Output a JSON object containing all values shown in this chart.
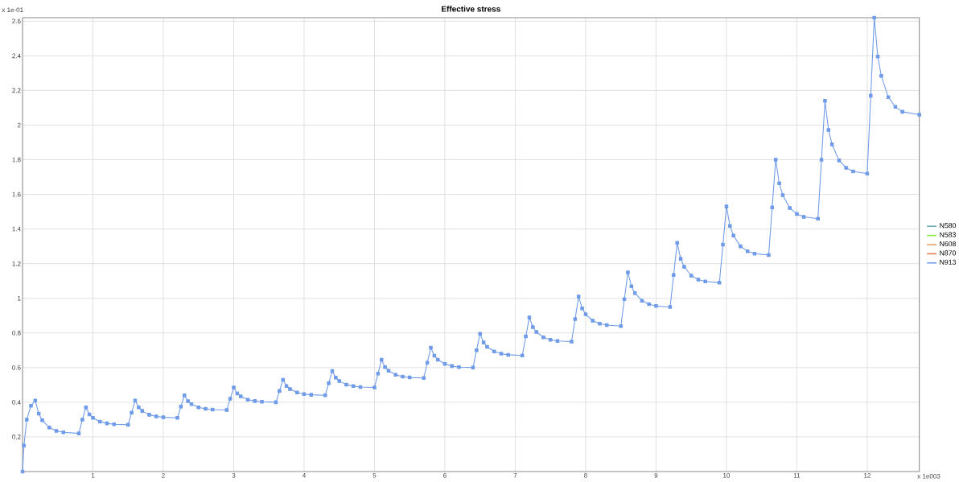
{
  "chart_data": {
    "type": "line",
    "title": "Effective stress",
    "x": [
      0,
      0.02,
      0.06,
      0.12,
      0.18,
      0.23,
      0.28,
      0.38,
      0.48,
      0.58,
      0.8,
      0.85,
      0.9,
      0.95,
      1.0,
      1.1,
      1.2,
      1.3,
      1.5,
      1.55,
      1.6,
      1.65,
      1.7,
      1.8,
      1.9,
      2.0,
      2.2,
      2.25,
      2.3,
      2.35,
      2.4,
      2.5,
      2.6,
      2.7,
      2.9,
      2.95,
      3.0,
      3.05,
      3.1,
      3.2,
      3.3,
      3.4,
      3.6,
      3.65,
      3.7,
      3.75,
      3.8,
      3.9,
      4.0,
      4.1,
      4.3,
      4.35,
      4.4,
      4.45,
      4.5,
      4.6,
      4.7,
      4.8,
      5.0,
      5.05,
      5.1,
      5.15,
      5.2,
      5.3,
      5.4,
      5.5,
      5.7,
      5.75,
      5.8,
      5.85,
      5.9,
      6.0,
      6.1,
      6.2,
      6.4,
      6.45,
      6.5,
      6.55,
      6.6,
      6.7,
      6.8,
      6.9,
      7.1,
      7.15,
      7.2,
      7.25,
      7.3,
      7.4,
      7.5,
      7.6,
      7.8,
      7.85,
      7.9,
      7.95,
      8.0,
      8.1,
      8.2,
      8.3,
      8.5,
      8.55,
      8.6,
      8.65,
      8.7,
      8.8,
      8.9,
      9.0,
      9.2,
      9.25,
      9.3,
      9.35,
      9.4,
      9.5,
      9.6,
      9.7,
      9.9,
      9.95,
      10.0,
      10.05,
      10.1,
      10.2,
      10.3,
      10.4,
      10.6,
      10.65,
      10.7,
      10.75,
      10.8,
      10.9,
      11.0,
      11.1,
      11.3,
      11.35,
      11.4,
      11.45,
      11.5,
      11.6,
      11.7,
      11.8,
      12.0,
      12.05,
      12.1,
      12.15,
      12.2,
      12.3,
      12.4,
      12.5,
      12.74
    ],
    "series": [
      {
        "name": "N580",
        "color": "#6fa8b8",
        "values": [
          null,
          null,
          null,
          null,
          null,
          null,
          null,
          null,
          null,
          null,
          null,
          null,
          null,
          null,
          null,
          null,
          null,
          null,
          null,
          null,
          null,
          null,
          null,
          null,
          null,
          null,
          null,
          null,
          null,
          null,
          null,
          null,
          null,
          null,
          null,
          null,
          null,
          null,
          null,
          null,
          null,
          null,
          null,
          null,
          null,
          null,
          null,
          null,
          null,
          null,
          null,
          null,
          null,
          null,
          null,
          null,
          null,
          null,
          null,
          null,
          null,
          null,
          null,
          null,
          null,
          null,
          null,
          null,
          null,
          null,
          null,
          null,
          null,
          null,
          null,
          null,
          null,
          null,
          null,
          null,
          null,
          null,
          null,
          null,
          null,
          null,
          null,
          null,
          null,
          null,
          null,
          null,
          null,
          null,
          null,
          null,
          null,
          null,
          null,
          null,
          null,
          null,
          null,
          null,
          null,
          null,
          null,
          null,
          null,
          null,
          null,
          null,
          null,
          null,
          null,
          null,
          null,
          null,
          null,
          null,
          null,
          null,
          null,
          null,
          null,
          null,
          null,
          null,
          null,
          null,
          null,
          null,
          null,
          null,
          null,
          null,
          null,
          null,
          null,
          null,
          null,
          null,
          null,
          null,
          null,
          null,
          null
        ]
      },
      {
        "name": "N583",
        "color": "#8ee83a",
        "values": [
          null,
          null,
          null,
          null,
          null,
          null,
          null,
          null,
          null,
          null,
          null,
          null,
          null,
          null,
          null,
          null,
          null,
          null,
          null,
          null,
          null,
          null,
          null,
          null,
          null,
          null,
          null,
          null,
          null,
          null,
          null,
          null,
          null,
          null,
          null,
          null,
          null,
          null,
          null,
          null,
          null,
          null,
          null,
          null,
          null,
          null,
          null,
          null,
          null,
          null,
          null,
          null,
          null,
          null,
          null,
          null,
          null,
          null,
          null,
          null,
          null,
          null,
          null,
          null,
          null,
          null,
          null,
          null,
          null,
          null,
          null,
          null,
          null,
          null,
          null,
          null,
          null,
          null,
          null,
          null,
          null,
          null,
          null,
          null,
          null,
          null,
          null,
          null,
          null,
          null,
          null,
          null,
          null,
          null,
          null,
          null,
          null,
          null,
          null,
          null,
          null,
          null,
          null,
          null,
          null,
          null,
          null,
          null,
          null,
          null,
          null,
          null,
          null,
          null,
          null,
          null,
          null,
          null,
          null,
          null,
          null,
          null,
          null,
          null,
          null,
          null,
          null,
          null,
          null,
          null,
          null,
          null,
          null,
          null,
          null,
          null,
          null,
          null,
          null,
          null,
          null,
          null,
          null,
          null,
          null,
          null,
          null
        ]
      },
      {
        "name": "N608",
        "color": "#e8a070",
        "values": [
          null,
          null,
          null,
          null,
          null,
          null,
          null,
          null,
          null,
          null,
          null,
          null,
          null,
          null,
          null,
          null,
          null,
          null,
          null,
          null,
          null,
          null,
          null,
          null,
          null,
          null,
          null,
          null,
          null,
          null,
          null,
          null,
          null,
          null,
          null,
          null,
          null,
          null,
          null,
          null,
          null,
          null,
          null,
          null,
          null,
          null,
          null,
          null,
          null,
          null,
          null,
          null,
          null,
          null,
          null,
          null,
          null,
          null,
          null,
          null,
          null,
          null,
          null,
          null,
          null,
          null,
          null,
          null,
          null,
          null,
          null,
          null,
          null,
          null,
          null,
          null,
          null,
          null,
          null,
          null,
          null,
          null,
          null,
          null,
          null,
          null,
          null,
          null,
          null,
          null,
          null,
          null,
          null,
          null,
          null,
          null,
          null,
          null,
          null,
          null,
          null,
          null,
          null,
          null,
          null,
          null,
          null,
          null,
          null,
          null,
          null,
          null,
          null,
          null,
          null,
          null,
          null,
          null,
          null,
          null,
          null,
          null,
          null,
          null,
          null,
          null,
          null,
          null,
          null,
          null,
          null,
          null,
          null,
          null,
          null,
          null,
          null,
          null,
          null,
          null,
          null,
          null,
          null,
          null,
          null,
          null,
          null
        ]
      },
      {
        "name": "N870",
        "color": "#f07848",
        "values": [
          null,
          null,
          null,
          null,
          null,
          null,
          null,
          null,
          null,
          null,
          null,
          null,
          null,
          null,
          null,
          null,
          null,
          null,
          null,
          null,
          null,
          null,
          null,
          null,
          null,
          null,
          null,
          null,
          null,
          null,
          null,
          null,
          null,
          null,
          null,
          null,
          null,
          null,
          null,
          null,
          null,
          null,
          null,
          null,
          null,
          null,
          null,
          null,
          null,
          null,
          null,
          null,
          null,
          null,
          null,
          null,
          null,
          null,
          null,
          null,
          null,
          null,
          null,
          null,
          null,
          null,
          null,
          null,
          null,
          null,
          null,
          null,
          null,
          null,
          null,
          null,
          null,
          null,
          null,
          null,
          null,
          null,
          null,
          null,
          null,
          null,
          null,
          null,
          null,
          null,
          null,
          null,
          null,
          null,
          null,
          null,
          null,
          null,
          null,
          null,
          null,
          null,
          null,
          null,
          null,
          null,
          null,
          null,
          null,
          null,
          null,
          null,
          null,
          null,
          null,
          null,
          null,
          null,
          null,
          null,
          null,
          null,
          null,
          null,
          null,
          null,
          null,
          null,
          null,
          null,
          null,
          null,
          null,
          null,
          null,
          null,
          null,
          null,
          null,
          null,
          null,
          null,
          null,
          null,
          null,
          null,
          null
        ]
      },
      {
        "name": "N913",
        "color": "#6f9be8",
        "marker": "square",
        "values": [
          0,
          0.15,
          0.3,
          0.38,
          0.41,
          0.334,
          0.296,
          0.254,
          0.235,
          0.226,
          0.22,
          0.3,
          0.37,
          0.33,
          0.31,
          0.288,
          0.278,
          0.273,
          0.27,
          0.34,
          0.41,
          0.37,
          0.35,
          0.328,
          0.318,
          0.313,
          0.31,
          0.375,
          0.44,
          0.406,
          0.389,
          0.37,
          0.362,
          0.358,
          0.355,
          0.42,
          0.485,
          0.451,
          0.434,
          0.415,
          0.407,
          0.403,
          0.4,
          0.465,
          0.53,
          0.494,
          0.476,
          0.456,
          0.447,
          0.443,
          0.44,
          0.51,
          0.58,
          0.542,
          0.523,
          0.502,
          0.493,
          0.488,
          0.485,
          0.565,
          0.645,
          0.603,
          0.582,
          0.559,
          0.548,
          0.543,
          0.54,
          0.628,
          0.715,
          0.669,
          0.646,
          0.621,
          0.609,
          0.603,
          0.6,
          0.7,
          0.795,
          0.745,
          0.72,
          0.693,
          0.68,
          0.674,
          0.67,
          0.78,
          0.89,
          0.834,
          0.806,
          0.775,
          0.761,
          0.754,
          0.75,
          0.88,
          1.01,
          0.942,
          0.908,
          0.871,
          0.854,
          0.845,
          0.84,
          0.995,
          1.15,
          1.07,
          1.03,
          0.986,
          0.966,
          0.956,
          0.95,
          1.135,
          1.32,
          1.228,
          1.182,
          1.131,
          1.108,
          1.097,
          1.09,
          1.31,
          1.53,
          1.418,
          1.362,
          1.3,
          1.272,
          1.258,
          1.25,
          1.525,
          1.8,
          1.664,
          1.596,
          1.521,
          1.487,
          1.47,
          1.46,
          1.8,
          2.14,
          1.972,
          1.888,
          1.796,
          1.754,
          1.733,
          1.72,
          2.17,
          2.62,
          2.396,
          2.284,
          2.161,
          2.105,
          2.077,
          2.06
        ]
      }
    ],
    "xlim": [
      0,
      12.74
    ],
    "xticks": [
      1,
      2,
      3,
      4,
      5,
      6,
      7,
      8,
      9,
      10,
      11,
      12
    ],
    "ylim": [
      0,
      2.62
    ],
    "yticks": [
      0.2,
      0.4,
      0.6,
      0.8,
      1,
      1.2,
      1.4,
      1.6,
      1.8,
      2,
      2.2,
      2.4,
      2.6
    ],
    "grid": true,
    "legend": "right",
    "line_style": "solid",
    "annotations": [
      "x 1e-01",
      "x 1e003"
    ]
  }
}
